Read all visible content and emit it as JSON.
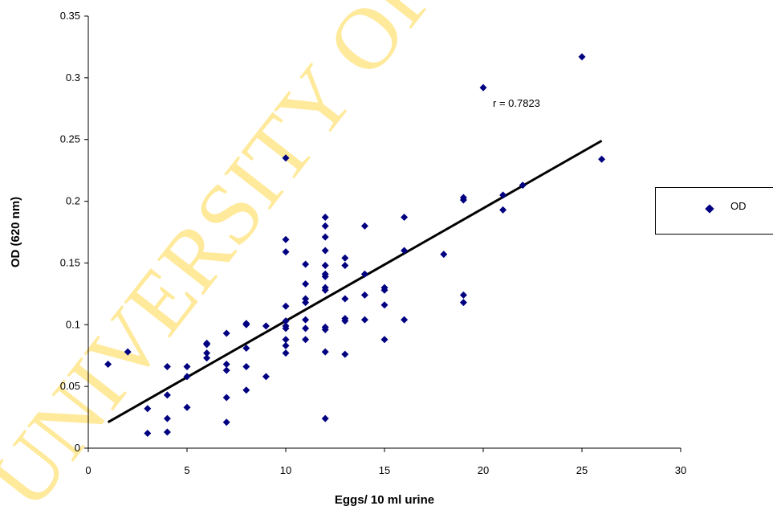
{
  "watermark": "UNIVERSITY OF IBADAN",
  "chart_data": {
    "type": "scatter",
    "xlabel": "Eggs/ 10 ml urine",
    "ylabel": "OD (620 nm)",
    "xlim": [
      0,
      30
    ],
    "ylim": [
      0,
      0.35
    ],
    "x_ticks": [
      "0",
      "5",
      "10",
      "15",
      "20",
      "25",
      "30"
    ],
    "y_ticks": [
      "0",
      "0.05",
      "0.1",
      "0.15",
      "0.2",
      "0.25",
      "0.3",
      "0.35"
    ],
    "legend_position": "right",
    "grid": false,
    "annotation": "r = 0.7823",
    "marker_color": "#000080",
    "line_color": "#000000",
    "series": [
      {
        "name": "OD",
        "points": [
          [
            1,
            0.068
          ],
          [
            2,
            0.078
          ],
          [
            3,
            0.032
          ],
          [
            3,
            0.012
          ],
          [
            4,
            0.066
          ],
          [
            4,
            0.043
          ],
          [
            4,
            0.024
          ],
          [
            4,
            0.013
          ],
          [
            5,
            0.066
          ],
          [
            5,
            0.058
          ],
          [
            5,
            0.033
          ],
          [
            6,
            0.085
          ],
          [
            6,
            0.084
          ],
          [
            6,
            0.077
          ],
          [
            6,
            0.073
          ],
          [
            7,
            0.093
          ],
          [
            7,
            0.068
          ],
          [
            7,
            0.063
          ],
          [
            7,
            0.041
          ],
          [
            7,
            0.021
          ],
          [
            8,
            0.101
          ],
          [
            8,
            0.1
          ],
          [
            8,
            0.081
          ],
          [
            8,
            0.066
          ],
          [
            8,
            0.047
          ],
          [
            9,
            0.099
          ],
          [
            9,
            0.058
          ],
          [
            10,
            0.235
          ],
          [
            10,
            0.169
          ],
          [
            10,
            0.159
          ],
          [
            10,
            0.115
          ],
          [
            10,
            0.103
          ],
          [
            10,
            0.099
          ],
          [
            10,
            0.097
          ],
          [
            10,
            0.088
          ],
          [
            10,
            0.083
          ],
          [
            10,
            0.077
          ],
          [
            11,
            0.149
          ],
          [
            11,
            0.133
          ],
          [
            11,
            0.121
          ],
          [
            11,
            0.118
          ],
          [
            11,
            0.104
          ],
          [
            11,
            0.097
          ],
          [
            11,
            0.088
          ],
          [
            12,
            0.187
          ],
          [
            12,
            0.18
          ],
          [
            12,
            0.171
          ],
          [
            12,
            0.16
          ],
          [
            12,
            0.148
          ],
          [
            12,
            0.141
          ],
          [
            12,
            0.139
          ],
          [
            12,
            0.13
          ],
          [
            12,
            0.128
          ],
          [
            12,
            0.098
          ],
          [
            12,
            0.096
          ],
          [
            12,
            0.078
          ],
          [
            12,
            0.024
          ],
          [
            13,
            0.154
          ],
          [
            13,
            0.148
          ],
          [
            13,
            0.121
          ],
          [
            13,
            0.105
          ],
          [
            13,
            0.103
          ],
          [
            13,
            0.076
          ],
          [
            14,
            0.18
          ],
          [
            14,
            0.141
          ],
          [
            14,
            0.124
          ],
          [
            14,
            0.104
          ],
          [
            15,
            0.13
          ],
          [
            15,
            0.128
          ],
          [
            15,
            0.116
          ],
          [
            15,
            0.088
          ],
          [
            16,
            0.187
          ],
          [
            16,
            0.16
          ],
          [
            16,
            0.104
          ],
          [
            18,
            0.157
          ],
          [
            19,
            0.203
          ],
          [
            19,
            0.201
          ],
          [
            19,
            0.124
          ],
          [
            19,
            0.118
          ],
          [
            20,
            0.292
          ],
          [
            21,
            0.205
          ],
          [
            21,
            0.193
          ],
          [
            22,
            0.213
          ],
          [
            25,
            0.317
          ],
          [
            26,
            0.234
          ]
        ]
      }
    ],
    "trendline": {
      "x": [
        1,
        26
      ],
      "y": [
        0.021,
        0.249
      ]
    }
  }
}
